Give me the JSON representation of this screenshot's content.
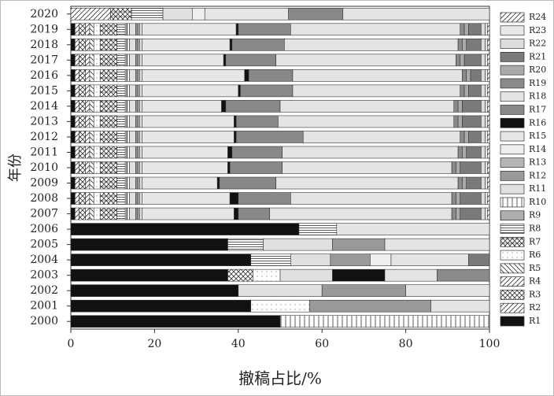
{
  "chart_data": {
    "type": "stacked_barh",
    "xlabel": "撤稿占比/%",
    "ylabel": "年份",
    "categories": [
      "2000",
      "2001",
      "2002",
      "2003",
      "2004",
      "2005",
      "2006",
      "2007",
      "2008",
      "2009",
      "2010",
      "2011",
      "2012",
      "2013",
      "2014",
      "2015",
      "2016",
      "2017",
      "2018",
      "2019",
      "2020"
    ],
    "xlim": [
      0,
      100
    ],
    "xticks": [
      0,
      20,
      40,
      60,
      80,
      100
    ],
    "legend": "right",
    "series": [
      {
        "name": "R1",
        "color": "#111111",
        "pattern": "solid",
        "values": [
          50,
          43,
          40,
          37.5,
          43,
          37.5,
          54.5,
          1,
          1,
          1,
          1,
          1,
          1,
          1,
          1,
          1,
          1,
          1,
          1,
          1,
          0
        ]
      },
      {
        "name": "R2",
        "color": "#333333",
        "pattern": "diag",
        "values": [
          0,
          0,
          0,
          0,
          0,
          0,
          0,
          1,
          1,
          1,
          1,
          1,
          1,
          1,
          1,
          1,
          1,
          1,
          1,
          1,
          9.5
        ]
      },
      {
        "name": "R3",
        "color": "#333333",
        "pattern": "cross",
        "values": [
          0,
          0,
          0,
          6,
          0,
          0,
          0,
          1.5,
          1.5,
          1.5,
          1.5,
          1.5,
          1.5,
          1.5,
          1.5,
          1.5,
          1.5,
          1.5,
          1.5,
          1.5,
          0
        ]
      },
      {
        "name": "R4",
        "color": "#333333",
        "pattern": "diag",
        "values": [
          0,
          0,
          0,
          0,
          0,
          0,
          0,
          1,
          1,
          1,
          1,
          1,
          1,
          1,
          1,
          1,
          1,
          1,
          1,
          1,
          0
        ]
      },
      {
        "name": "R5",
        "color": "#333333",
        "pattern": "backdiag",
        "values": [
          0,
          0,
          0,
          0,
          0,
          0,
          0,
          1,
          1,
          1,
          1,
          1,
          1,
          1,
          1,
          1,
          1,
          1,
          1,
          1,
          0
        ]
      },
      {
        "name": "R6",
        "color": "#999999",
        "pattern": "dots",
        "values": [
          0,
          14,
          0,
          6.5,
          0,
          0,
          0,
          1.5,
          1.5,
          1.5,
          1.5,
          1.5,
          1.5,
          1.5,
          1.5,
          1.5,
          1.5,
          1.5,
          1.5,
          1.5,
          0
        ]
      },
      {
        "name": "R7",
        "color": "#333333",
        "pattern": "crosshatch",
        "values": [
          0,
          0,
          0,
          0,
          0,
          0,
          0,
          4,
          4,
          4,
          4,
          4,
          4,
          4,
          4,
          4,
          4,
          4,
          4,
          4,
          5
        ]
      },
      {
        "name": "R8",
        "color": "#333333",
        "pattern": "hlines",
        "values": [
          0,
          0,
          0,
          0,
          9.5,
          8.5,
          9,
          2,
          2,
          2,
          2,
          2,
          2,
          2,
          2,
          2,
          2,
          2,
          2,
          2,
          7.5
        ]
      },
      {
        "name": "R9",
        "color": "#333333",
        "pattern": "vdense",
        "values": [
          0,
          0,
          0,
          0,
          0,
          0,
          0,
          0.5,
          0.5,
          0.5,
          0.5,
          0.5,
          0.5,
          0.5,
          0.5,
          0.5,
          0.5,
          0.5,
          0.5,
          0.5,
          0
        ]
      },
      {
        "name": "R10",
        "color": "#333333",
        "pattern": "vlines",
        "values": [
          50,
          0,
          0,
          0,
          0,
          0,
          0,
          0.5,
          0.5,
          0.5,
          0.5,
          0.5,
          0.5,
          0.5,
          0.5,
          0.5,
          0.5,
          0.5,
          0.5,
          0.5,
          0
        ]
      },
      {
        "name": "R11",
        "color": "#e0e0e0",
        "pattern": "solid",
        "values": [
          0,
          0,
          20,
          12.5,
          9.5,
          16.5,
          0,
          1.5,
          1.5,
          1.5,
          1.5,
          1.5,
          1.5,
          1.5,
          1.5,
          1.5,
          1.5,
          1.5,
          1.5,
          1.5,
          7
        ]
      },
      {
        "name": "R12",
        "color": "#999999",
        "pattern": "solid",
        "values": [
          0,
          29,
          20,
          0,
          9.5,
          12.5,
          0,
          0.5,
          0.5,
          0.5,
          0.5,
          0.5,
          0.5,
          0.5,
          0.5,
          0.5,
          0.5,
          0.5,
          0.5,
          0.5,
          0
        ]
      },
      {
        "name": "R13",
        "color": "#b5b5b5",
        "pattern": "solid",
        "values": [
          0,
          0,
          0,
          0,
          0,
          0,
          0,
          0.5,
          0.5,
          0.5,
          0.5,
          0.5,
          0.5,
          0.5,
          0.5,
          0.5,
          0.5,
          0.5,
          0.5,
          0.5,
          0
        ]
      },
      {
        "name": "R14",
        "color": "#eeeeee",
        "pattern": "solid",
        "values": [
          0,
          0,
          0,
          0,
          5,
          0,
          0,
          0.5,
          0.5,
          0.5,
          0.5,
          0.5,
          0.5,
          0.5,
          0.5,
          0.5,
          0.5,
          0.5,
          0.5,
          0.5,
          3
        ]
      },
      {
        "name": "R15",
        "color": "#e6e6e6",
        "pattern": "solid",
        "values": [
          0,
          0,
          0,
          0,
          0,
          0,
          0,
          22,
          21,
          18,
          20.5,
          20.5,
          22,
          22,
          19,
          23,
          24.5,
          19.5,
          21,
          22.5,
          20
        ]
      },
      {
        "name": "R16",
        "color": "#111111",
        "pattern": "solid",
        "values": [
          0,
          0,
          0,
          12.5,
          0,
          0,
          0,
          1,
          2,
          0.5,
          0.5,
          1,
          0.5,
          0.5,
          1,
          0.5,
          1,
          0.5,
          0.5,
          0.5,
          0
        ]
      },
      {
        "name": "R17",
        "color": "#888888",
        "pattern": "solid",
        "values": [
          0,
          0,
          0,
          0,
          0,
          0,
          0,
          7.5,
          12.5,
          13.5,
          12.5,
          12,
          16,
          10,
          13,
          12.5,
          10.5,
          12,
          12.5,
          12.5,
          13
        ]
      },
      {
        "name": "R18",
        "color": "#e4e4e4",
        "pattern": "solid",
        "values": [
          0,
          14,
          20,
          12.5,
          18.5,
          25,
          36.5,
          43.5,
          38.5,
          43.5,
          40.5,
          42,
          37.5,
          42,
          41.5,
          40,
          40.5,
          43,
          41.5,
          40.5,
          35
        ]
      },
      {
        "name": "R19",
        "color": "#8a8a8a",
        "pattern": "solid",
        "values": [
          0,
          0,
          0,
          12.5,
          0,
          0,
          0,
          1,
          1,
          1,
          1,
          1,
          1,
          1,
          1,
          1,
          1,
          1,
          1,
          1,
          0
        ]
      },
      {
        "name": "R20",
        "color": "#aaaaaa",
        "pattern": "solid",
        "values": [
          0,
          0,
          0,
          0,
          0,
          0,
          0,
          1,
          1,
          1,
          1,
          1,
          1,
          1,
          1,
          1,
          1,
          1,
          1,
          1,
          0
        ]
      },
      {
        "name": "R21",
        "color": "#7a7a7a",
        "pattern": "solid",
        "values": [
          0,
          0,
          0,
          0,
          5,
          0,
          0,
          5,
          5,
          3.5,
          5,
          3.5,
          3,
          4.5,
          4.5,
          3,
          2.5,
          4,
          3.5,
          3,
          0
        ]
      },
      {
        "name": "R22",
        "color": "#dddddd",
        "pattern": "solid",
        "values": [
          0,
          0,
          0,
          0,
          0,
          0,
          0,
          1,
          1,
          1,
          1,
          1,
          1,
          1,
          1,
          1,
          1,
          1,
          1,
          1,
          0
        ]
      },
      {
        "name": "R23",
        "color": "#e8e8e8",
        "pattern": "solid",
        "values": [
          0,
          0,
          0,
          0,
          0,
          0,
          0,
          0.5,
          0.5,
          0.5,
          0.5,
          0.5,
          0.5,
          0.5,
          0.5,
          0.5,
          0.5,
          0.5,
          0.5,
          0.5,
          0
        ]
      },
      {
        "name": "R24",
        "color": "#333333",
        "pattern": "diag",
        "values": [
          0,
          0,
          0,
          0,
          0,
          0,
          0,
          0.5,
          0.5,
          0.5,
          0.5,
          0.5,
          0.5,
          0.5,
          0.5,
          0.5,
          0.5,
          0.5,
          0.5,
          0.5,
          0
        ]
      }
    ]
  }
}
